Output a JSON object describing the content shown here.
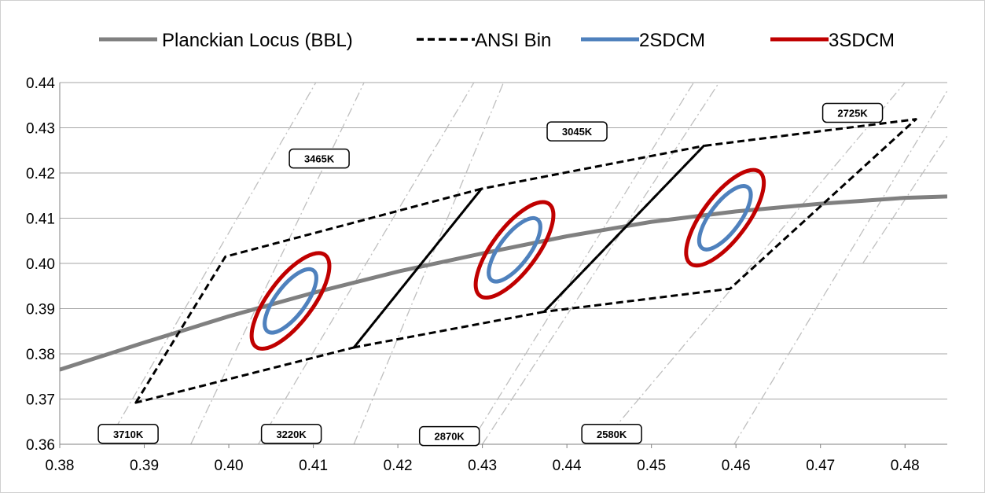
{
  "chart_data": {
    "type": "line",
    "title": "",
    "xlabel": "",
    "ylabel": "",
    "xlim": [
      0.38,
      0.485
    ],
    "ylim": [
      0.36,
      0.44
    ],
    "x_ticks": [
      "0.38",
      "0.39",
      "0.40",
      "0.41",
      "0.42",
      "0.43",
      "0.44",
      "0.45",
      "0.46",
      "0.47",
      "0.48"
    ],
    "y_ticks": [
      "0.36",
      "0.37",
      "0.38",
      "0.39",
      "0.40",
      "0.41",
      "0.42",
      "0.43",
      "0.44"
    ],
    "grid": "horizontal",
    "legend_position": "top",
    "legend": [
      {
        "name": "Planckian Locus (BBL)",
        "color": "#808080",
        "style": "solid"
      },
      {
        "name": "ANSI Bin",
        "color": "#000000",
        "style": "dashed"
      },
      {
        "name": "2SDCM",
        "color": "#4f81bd",
        "style": "solid"
      },
      {
        "name": "3SDCM",
        "color": "#c00000",
        "style": "solid"
      }
    ],
    "series": [
      {
        "name": "Planckian Locus (BBL)",
        "points": [
          [
            0.38,
            0.3765
          ],
          [
            0.39,
            0.3825
          ],
          [
            0.4,
            0.3883
          ],
          [
            0.41,
            0.3935
          ],
          [
            0.42,
            0.3982
          ],
          [
            0.43,
            0.4022
          ],
          [
            0.44,
            0.406
          ],
          [
            0.45,
            0.4092
          ],
          [
            0.46,
            0.4115
          ],
          [
            0.47,
            0.4132
          ],
          [
            0.48,
            0.4145
          ],
          [
            0.485,
            0.4148
          ]
        ]
      },
      {
        "name": "ANSI Bin",
        "polygons": [
          [
            [
              0.389,
              0.3692
            ],
            [
              0.3996,
              0.4015
            ],
            [
              0.4299,
              0.4165
            ],
            [
              0.4148,
              0.3814
            ]
          ],
          [
            [
              0.4148,
              0.3814
            ],
            [
              0.4299,
              0.4165
            ],
            [
              0.4562,
              0.426
            ],
            [
              0.4373,
              0.3893
            ]
          ],
          [
            [
              0.4373,
              0.3893
            ],
            [
              0.4562,
              0.426
            ],
            [
              0.4813,
              0.4319
            ],
            [
              0.4593,
              0.3944
            ]
          ]
        ]
      },
      {
        "name": "2SDCM",
        "ellipses": [
          {
            "cx": 0.4073,
            "cy": 0.3917,
            "rx": 0.0045,
            "ry": 0.0033,
            "angle_deg": 53
          },
          {
            "cx": 0.4338,
            "cy": 0.403,
            "rx": 0.0045,
            "ry": 0.0033,
            "angle_deg": 53
          },
          {
            "cx": 0.4587,
            "cy": 0.4101,
            "rx": 0.0045,
            "ry": 0.0033,
            "angle_deg": 53
          }
        ]
      },
      {
        "name": "3SDCM",
        "ellipses": [
          {
            "cx": 0.4073,
            "cy": 0.3917,
            "rx": 0.0068,
            "ry": 0.0049,
            "angle_deg": 53
          },
          {
            "cx": 0.4338,
            "cy": 0.403,
            "rx": 0.0068,
            "ry": 0.0049,
            "angle_deg": 53
          },
          {
            "cx": 0.4587,
            "cy": 0.4101,
            "rx": 0.0068,
            "ry": 0.0049,
            "angle_deg": 53
          }
        ]
      }
    ],
    "isotherms": [
      {
        "points": [
          [
            0.3855,
            0.36
          ],
          [
            0.4103,
            0.44
          ]
        ],
        "style": "dashdot"
      },
      {
        "points": [
          [
            0.3955,
            0.36
          ],
          [
            0.416,
            0.44
          ]
        ],
        "style": "dashdot"
      },
      {
        "points": [
          [
            0.4035,
            0.36
          ],
          [
            0.429,
            0.44
          ]
        ],
        "style": "dashdot"
      },
      {
        "points": [
          [
            0.4148,
            0.36
          ],
          [
            0.4325,
            0.44
          ]
        ],
        "style": "dashdot"
      },
      {
        "points": [
          [
            0.4285,
            0.36
          ],
          [
            0.455,
            0.44
          ]
        ],
        "style": "dashdot"
      },
      {
        "points": [
          [
            0.43,
            0.36
          ],
          [
            0.458,
            0.44
          ]
        ],
        "style": "dashdot"
      },
      {
        "points": [
          [
            0.444,
            0.36
          ],
          [
            0.48,
            0.44
          ]
        ],
        "style": "dashdot"
      },
      {
        "points": [
          [
            0.4598,
            0.36
          ],
          [
            0.485,
            0.4382
          ]
        ],
        "style": "dashdot"
      },
      {
        "points": [
          [
            0.475,
            0.4
          ],
          [
            0.485,
            0.4282
          ]
        ],
        "style": "dashdot"
      }
    ],
    "annotations": [
      {
        "text": "3465K",
        "x": 0.4107,
        "y": 0.4232
      },
      {
        "text": "3045K",
        "x": 0.4412,
        "y": 0.4292
      },
      {
        "text": "2725K",
        "x": 0.4738,
        "y": 0.4333
      },
      {
        "text": "3710K",
        "x": 0.3881,
        "y": 0.3623
      },
      {
        "text": "3220K",
        "x": 0.4074,
        "y": 0.3623
      },
      {
        "text": "2870K",
        "x": 0.4261,
        "y": 0.3618
      },
      {
        "text": "2580K",
        "x": 0.4453,
        "y": 0.3623
      }
    ]
  }
}
